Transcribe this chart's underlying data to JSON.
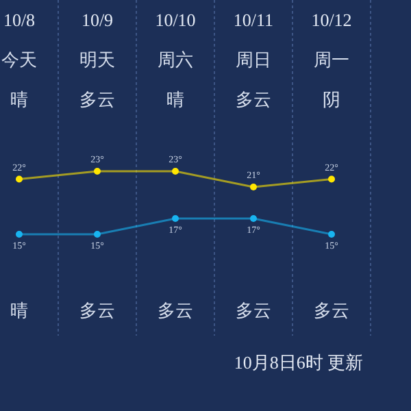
{
  "chart_data": {
    "type": "line",
    "categories": [
      "10/8",
      "10/9",
      "10/10",
      "10/11",
      "10/12"
    ],
    "series": [
      {
        "color": "#ffe600",
        "values": [
          22,
          23,
          23,
          21,
          22
        ],
        "value_labels": [
          "22°",
          "23°",
          "23°",
          "21°",
          "22°"
        ]
      },
      {
        "color": "#18b4f0",
        "values": [
          15,
          15,
          17,
          17,
          15
        ],
        "value_labels": [
          "15°",
          "15°",
          "17°",
          "17°",
          "15°"
        ]
      }
    ],
    "marker": "circle",
    "grid": "x",
    "annotations": [
      "今天",
      "明天",
      "周六",
      "周日",
      "周一",
      "晴",
      "多云",
      "晴",
      "多云",
      "阴",
      "晴",
      "多云",
      "多云",
      "多云",
      "多云",
      "10月8日6时 更新"
    ]
  }
}
